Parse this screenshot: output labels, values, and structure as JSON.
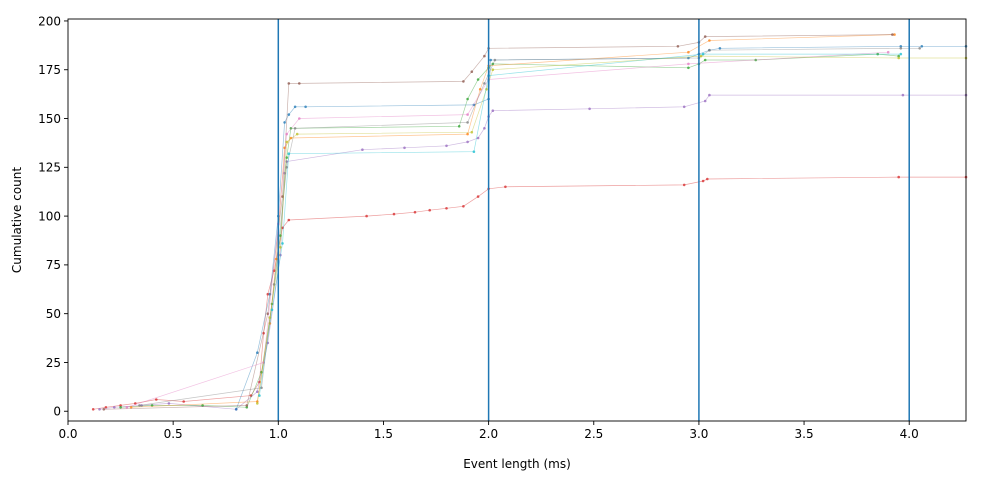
{
  "chart_data": {
    "type": "scatter",
    "title": "",
    "xlabel": "Event length (ms)",
    "ylabel": "Cumulative count",
    "xlim": [
      0.0,
      4.27
    ],
    "ylim": [
      -5,
      201
    ],
    "x_ticks": [
      "0.0",
      "0.5",
      "1.0",
      "1.5",
      "2.0",
      "2.5",
      "3.0",
      "3.5",
      "4.0"
    ],
    "y_ticks": [
      "0",
      "25",
      "50",
      "75",
      "100",
      "125",
      "150",
      "175",
      "200"
    ],
    "grid": false,
    "legend": "none",
    "vertical_reference_lines": {
      "x": [
        1.0,
        2.0,
        3.0,
        4.0
      ],
      "color": "#1f77b4"
    },
    "series": [
      {
        "color": "#d62728",
        "points": [
          [
            0.12,
            1
          ],
          [
            0.18,
            2
          ],
          [
            0.25,
            3
          ],
          [
            0.32,
            4
          ],
          [
            0.42,
            6
          ],
          [
            0.55,
            5
          ],
          [
            0.87,
            8
          ],
          [
            0.91,
            15
          ],
          [
            0.93,
            40
          ],
          [
            0.95,
            60
          ],
          [
            0.98,
            72
          ],
          [
            1.02,
            94
          ],
          [
            1.05,
            98
          ],
          [
            1.42,
            100
          ],
          [
            1.55,
            101
          ],
          [
            1.65,
            102
          ],
          [
            1.72,
            103
          ],
          [
            1.8,
            104
          ],
          [
            1.88,
            105
          ],
          [
            1.95,
            110
          ],
          [
            2.0,
            114
          ],
          [
            2.08,
            115
          ],
          [
            2.93,
            116
          ],
          [
            3.02,
            118
          ],
          [
            3.04,
            119
          ],
          [
            3.95,
            120
          ],
          [
            4.27,
            120
          ]
        ]
      },
      {
        "color": "#9467bd",
        "points": [
          [
            0.15,
            1
          ],
          [
            0.22,
            2
          ],
          [
            0.35,
            3
          ],
          [
            0.48,
            4
          ],
          [
            0.8,
            1
          ],
          [
            0.9,
            10
          ],
          [
            0.95,
            35
          ],
          [
            1.01,
            80
          ],
          [
            1.03,
            122
          ],
          [
            1.04,
            128
          ],
          [
            1.4,
            134
          ],
          [
            1.6,
            135
          ],
          [
            1.8,
            136
          ],
          [
            1.9,
            138
          ],
          [
            1.95,
            140
          ],
          [
            1.98,
            145
          ],
          [
            2.0,
            151
          ],
          [
            2.02,
            154
          ],
          [
            2.48,
            155
          ],
          [
            2.93,
            156
          ],
          [
            3.03,
            159
          ],
          [
            3.05,
            162
          ],
          [
            3.97,
            162
          ],
          [
            4.27,
            162
          ]
        ]
      },
      {
        "color": "#1f77b4",
        "points": [
          [
            0.8,
            1
          ],
          [
            0.9,
            30
          ],
          [
            0.96,
            60
          ],
          [
            1.0,
            100
          ],
          [
            1.03,
            148
          ],
          [
            1.05,
            152
          ],
          [
            1.08,
            156
          ],
          [
            1.13,
            156
          ],
          [
            1.93,
            157
          ],
          [
            2.0,
            160
          ],
          [
            2.01,
            180
          ],
          [
            2.95,
            181
          ],
          [
            3.0,
            183
          ],
          [
            3.05,
            185
          ],
          [
            3.1,
            186
          ],
          [
            3.96,
            187
          ],
          [
            4.06,
            187
          ],
          [
            4.27,
            187
          ]
        ]
      },
      {
        "color": "#2ca02c",
        "points": [
          [
            0.25,
            2
          ],
          [
            0.4,
            3
          ],
          [
            0.64,
            3
          ],
          [
            0.85,
            2
          ],
          [
            0.92,
            20
          ],
          [
            0.97,
            55
          ],
          [
            1.01,
            90
          ],
          [
            1.04,
            130
          ],
          [
            1.06,
            145
          ],
          [
            1.86,
            146
          ],
          [
            1.9,
            160
          ],
          [
            1.95,
            170
          ],
          [
            2.0,
            176
          ],
          [
            2.02,
            178
          ],
          [
            2.95,
            176
          ],
          [
            3.0,
            178
          ],
          [
            3.03,
            180
          ],
          [
            3.27,
            180
          ],
          [
            3.85,
            183
          ],
          [
            3.95,
            182
          ]
        ]
      },
      {
        "color": "#ff7f0e",
        "points": [
          [
            0.3,
            2
          ],
          [
            0.9,
            5
          ],
          [
            0.96,
            45
          ],
          [
            0.99,
            78
          ],
          [
            1.03,
            135
          ],
          [
            1.06,
            140
          ],
          [
            1.9,
            142
          ],
          [
            1.96,
            165
          ],
          [
            2.0,
            177
          ],
          [
            2.95,
            184
          ],
          [
            3.05,
            190
          ],
          [
            3.93,
            193
          ]
        ]
      },
      {
        "color": "#8c564b",
        "points": [
          [
            0.17,
            1
          ],
          [
            0.85,
            3
          ],
          [
            0.95,
            50
          ],
          [
            1.02,
            110
          ],
          [
            1.05,
            168
          ],
          [
            1.1,
            168
          ],
          [
            1.88,
            169
          ],
          [
            1.92,
            174
          ],
          [
            1.98,
            182
          ],
          [
            2.0,
            186
          ],
          [
            2.9,
            187
          ],
          [
            3.0,
            189
          ],
          [
            3.03,
            192
          ],
          [
            3.92,
            193
          ]
        ]
      },
      {
        "color": "#e377c2",
        "points": [
          [
            0.28,
            2
          ],
          [
            0.93,
            25
          ],
          [
            1.0,
            96
          ],
          [
            1.04,
            142
          ],
          [
            1.1,
            150
          ],
          [
            1.9,
            152
          ],
          [
            2.0,
            170
          ],
          [
            2.95,
            178
          ],
          [
            3.9,
            184
          ]
        ]
      },
      {
        "color": "#7f7f7f",
        "points": [
          [
            0.34,
            3
          ],
          [
            0.92,
            12
          ],
          [
            0.98,
            65
          ],
          [
            1.04,
            125
          ],
          [
            1.08,
            145
          ],
          [
            1.9,
            148
          ],
          [
            1.98,
            168
          ],
          [
            2.03,
            180
          ],
          [
            3.0,
            181
          ],
          [
            3.05,
            185
          ],
          [
            3.96,
            186
          ],
          [
            4.05,
            186
          ]
        ]
      },
      {
        "color": "#bcbd22",
        "points": [
          [
            0.9,
            4
          ],
          [
            0.96,
            48
          ],
          [
            1.01,
            84
          ],
          [
            1.04,
            138
          ],
          [
            1.09,
            142
          ],
          [
            1.92,
            143
          ],
          [
            1.99,
            165
          ],
          [
            2.02,
            175
          ],
          [
            3.01,
            182
          ],
          [
            3.95,
            181
          ],
          [
            4.27,
            181
          ]
        ]
      },
      {
        "color": "#17becf",
        "points": [
          [
            0.91,
            8
          ],
          [
            0.97,
            52
          ],
          [
            1.02,
            86
          ],
          [
            1.05,
            132
          ],
          [
            1.93,
            133
          ],
          [
            2.0,
            172
          ],
          [
            3.02,
            183
          ],
          [
            3.96,
            183
          ]
        ]
      }
    ]
  }
}
